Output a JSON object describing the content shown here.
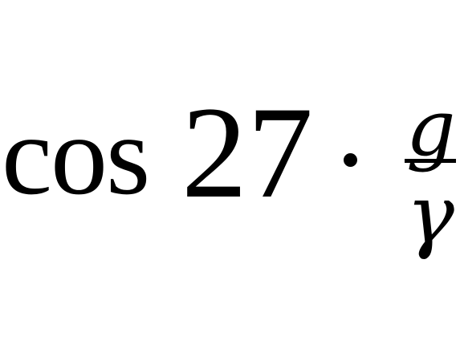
{
  "formula": {
    "function": "cos",
    "argument": "27",
    "operator": "·",
    "fraction": {
      "numerator": "g",
      "denominator": "γ"
    }
  }
}
